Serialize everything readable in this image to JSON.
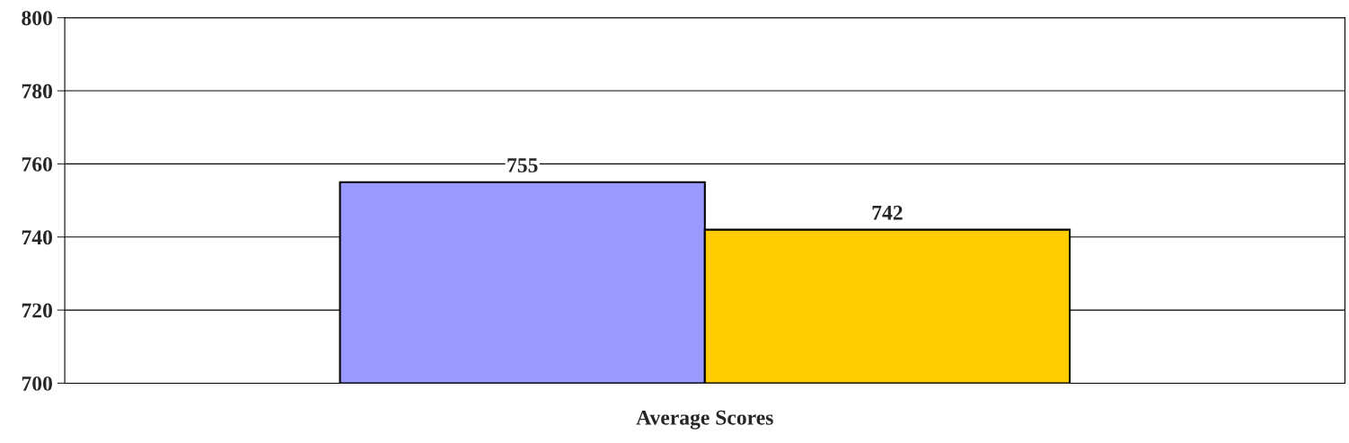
{
  "chart_data": {
    "type": "bar",
    "xlabel": "Average Scores",
    "categories": [
      null
    ],
    "series": [
      {
        "color": "#9999ff",
        "values": [
          755
        ]
      },
      {
        "color": "#ffcc00",
        "values": [
          742
        ]
      }
    ],
    "ylim": [
      700,
      800
    ],
    "yticks": [
      700,
      720,
      740,
      760,
      780,
      800
    ],
    "grid": "y",
    "data_labels": true
  }
}
